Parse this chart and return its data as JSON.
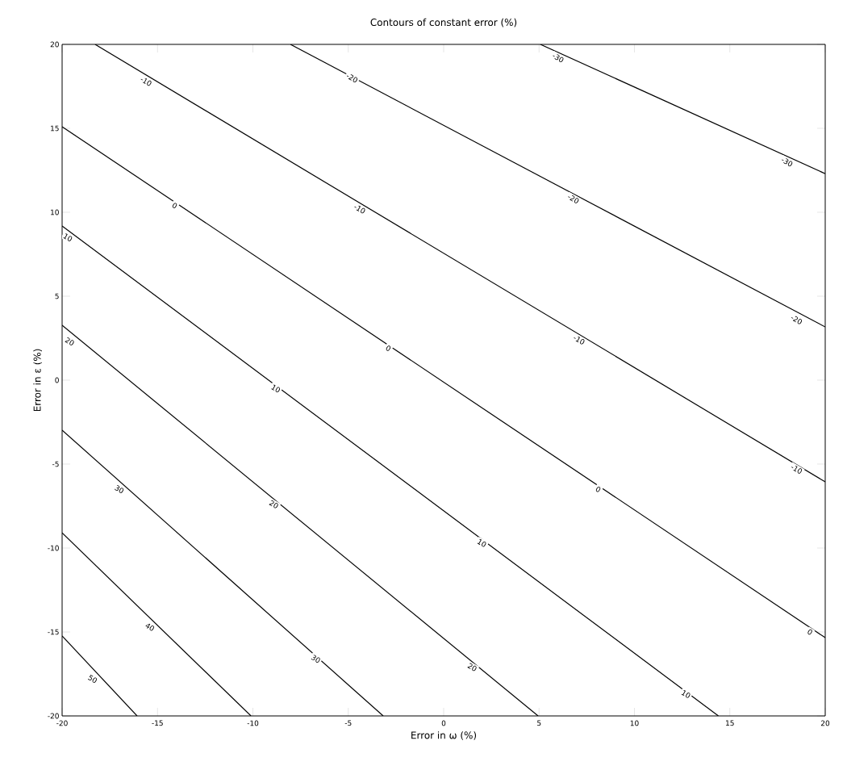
{
  "chart_data": {
    "type": "line",
    "title": "Contours of constant error (%)",
    "xlabel": "Error in ω (%)",
    "ylabel": "Error in ε (%)",
    "xlim": [
      -20,
      20
    ],
    "ylim": [
      -20,
      20
    ],
    "xticks": [
      -20,
      -15,
      -10,
      -5,
      0,
      5,
      10,
      15,
      20
    ],
    "yticks": [
      -20,
      -15,
      -10,
      -5,
      0,
      5,
      10,
      15,
      20
    ],
    "grid": false,
    "series": [
      {
        "color": "#000000",
        "x": [
          5.07,
          20
        ],
        "values": [
          20,
          12.3
        ]
      },
      {
        "color": "#000000",
        "x": [
          -8.03,
          20
        ],
        "values": [
          20,
          3.17
        ]
      },
      {
        "color": "#000000",
        "x": [
          -18.27,
          20
        ],
        "values": [
          20,
          -6.06
        ]
      },
      {
        "color": "#000000",
        "x": [
          -20,
          20
        ],
        "values": [
          15.1,
          -15.34
        ]
      },
      {
        "color": "#000000",
        "x": [
          -20,
          14.4
        ],
        "values": [
          9.18,
          -20
        ]
      },
      {
        "color": "#000000",
        "x": [
          -20,
          4.95
        ],
        "values": [
          3.27,
          -20
        ]
      },
      {
        "color": "#000000",
        "x": [
          -20,
          -3.17
        ],
        "values": [
          -2.98,
          -20
        ]
      },
      {
        "color": "#000000",
        "x": [
          -20,
          -10.1
        ],
        "values": [
          -9.1,
          -20
        ]
      },
      {
        "color": "#000000",
        "x": [
          -20,
          -16.07
        ],
        "values": [
          -15.24,
          -20
        ]
      }
    ],
    "annotations": [
      {
        "text": "-30",
        "x": 6.0,
        "y": 19.2
      },
      {
        "text": "-30",
        "x": 18.0,
        "y": 13.0
      },
      {
        "text": "-20",
        "x": -4.8,
        "y": 18.0
      },
      {
        "text": "-20",
        "x": 6.8,
        "y": 10.8
      },
      {
        "text": "-20",
        "x": 18.5,
        "y": 3.6
      },
      {
        "text": "-10",
        "x": -15.6,
        "y": 17.8
      },
      {
        "text": "-10",
        "x": -4.4,
        "y": 10.2
      },
      {
        "text": "-10",
        "x": 7.1,
        "y": 2.4
      },
      {
        "text": "-10",
        "x": 18.5,
        "y": -5.3
      },
      {
        "text": "0",
        "x": -14.1,
        "y": 10.4
      },
      {
        "text": "0",
        "x": -2.9,
        "y": 1.9
      },
      {
        "text": "0",
        "x": 8.1,
        "y": -6.5
      },
      {
        "text": "0",
        "x": 19.2,
        "y": -15.0
      },
      {
        "text": "10",
        "x": -19.7,
        "y": 8.5
      },
      {
        "text": "10",
        "x": -8.8,
        "y": -0.5
      },
      {
        "text": "10",
        "x": 2.0,
        "y": -9.7
      },
      {
        "text": "10",
        "x": 12.7,
        "y": -18.7
      },
      {
        "text": "20",
        "x": -19.6,
        "y": 2.3
      },
      {
        "text": "20",
        "x": -8.9,
        "y": -7.4
      },
      {
        "text": "20",
        "x": 1.5,
        "y": -17.1
      },
      {
        "text": "30",
        "x": -17.0,
        "y": -6.5
      },
      {
        "text": "30",
        "x": -6.7,
        "y": -16.6
      },
      {
        "text": "40",
        "x": -15.4,
        "y": -14.7
      },
      {
        "text": "50",
        "x": -18.4,
        "y": -17.8
      }
    ]
  }
}
